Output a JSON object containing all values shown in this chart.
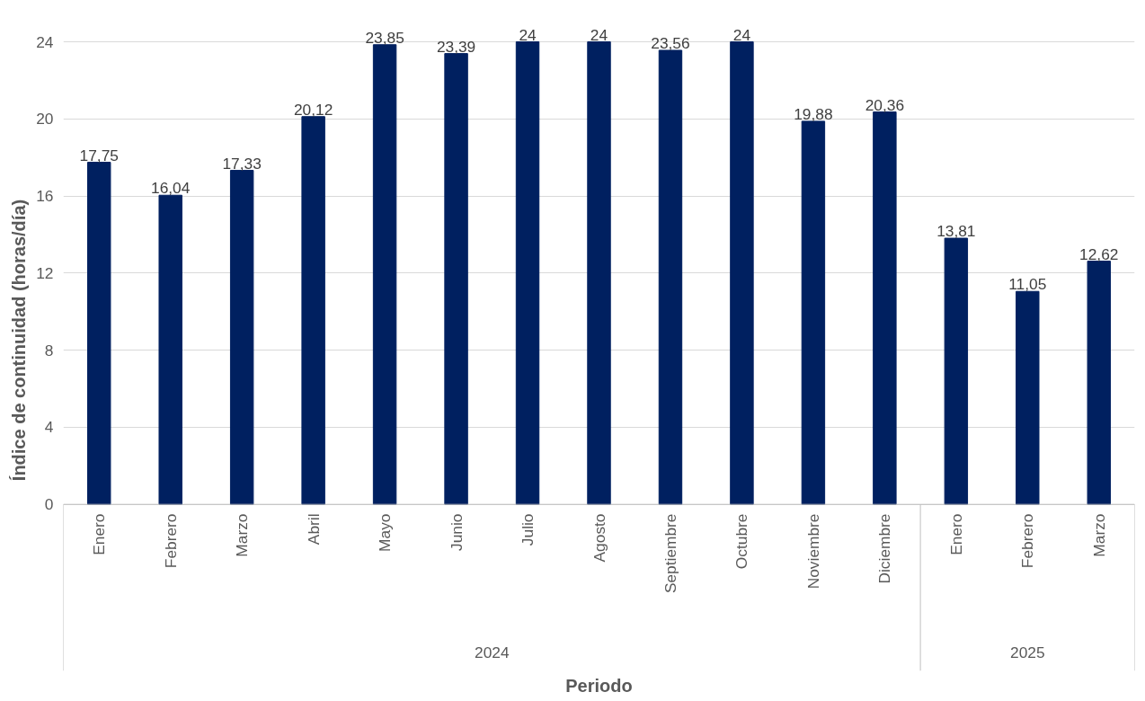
{
  "chart_data": {
    "type": "bar",
    "xlabel": "Periodo",
    "ylabel": "Índice de continuidad (horas/día)",
    "categories": [
      "Enero",
      "Febrero",
      "Marzo",
      "Abril",
      "Mayo",
      "Junio",
      "Julio",
      "Agosto",
      "Septiembre",
      "Octubre",
      "Noviembre",
      "Diciembre",
      "Enero",
      "Febrero",
      "Marzo"
    ],
    "values": [
      17.75,
      16.04,
      17.33,
      20.12,
      23.85,
      23.39,
      24,
      24,
      23.56,
      24,
      19.88,
      20.36,
      13.81,
      11.05,
      12.62
    ],
    "value_labels": [
      "17,75",
      "16,04",
      "17,33",
      "20,12",
      "23,85",
      "23,39",
      "24",
      "24",
      "23,56",
      "24",
      "19,88",
      "20,36",
      "13,81",
      "11,05",
      "12,62"
    ],
    "color": "#002060",
    "ylim": [
      0,
      24
    ],
    "yticks": [
      0,
      4,
      8,
      12,
      16,
      20,
      24
    ],
    "grid": "y",
    "annotations": [
      "2024",
      "2025"
    ]
  }
}
